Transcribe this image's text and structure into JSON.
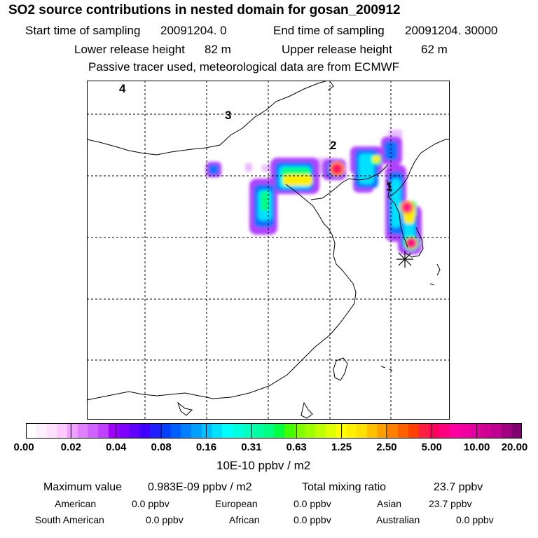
{
  "header": {
    "title": "SO2 source contributions in nested domain for gosan_200912",
    "start_label": "Start time of sampling",
    "start_value": "20091204.    0",
    "end_label": "End time of sampling",
    "end_value": "20091204. 30000",
    "lower_label": "Lower release height",
    "lower_value": "82 m",
    "upper_label": "Upper release height",
    "upper_value": "62 m",
    "tracer_note": "Passive tracer used, meteorological data are from ECMWF"
  },
  "map": {
    "region_labels": [
      "4",
      "3",
      "2",
      "1"
    ],
    "receptor_marker": "asterisk-icon",
    "hotspot_colors": [
      "#ff1480",
      "#e6003c",
      "#ffe000",
      "#c8ff00",
      "#00ff80",
      "#00a0ff",
      "#a000ff"
    ]
  },
  "colorbar": {
    "tick_labels": [
      "0.00",
      "0.02",
      "0.04",
      "0.08",
      "0.16",
      "0.31",
      "0.63",
      "1.25",
      "2.50",
      "5.00",
      "10.00",
      "20.00"
    ],
    "colors": [
      "#ffffff",
      "#fff0ff",
      "#ffe0ff",
      "#ffc8ff",
      "#f0a0ff",
      "#e080ff",
      "#d060ff",
      "#c040ff",
      "#a000ff",
      "#8000ff",
      "#6000ff",
      "#4000ff",
      "#2020ff",
      "#0040ff",
      "#0060ff",
      "#0080ff",
      "#00a0ff",
      "#00c0ff",
      "#00e0ff",
      "#00ffff",
      "#00ffe0",
      "#00ffc0",
      "#00ffa0",
      "#00ff80",
      "#00ff40",
      "#40ff00",
      "#80ff00",
      "#a0ff00",
      "#c0ff00",
      "#e0ff00",
      "#ffff00",
      "#fff000",
      "#ffe000",
      "#ffc000",
      "#ffa000",
      "#ff8000",
      "#ff6000",
      "#ff4000",
      "#ff2040",
      "#ff0060",
      "#ff0080",
      "#ff00a0",
      "#f000a0",
      "#e000a0",
      "#d00090",
      "#c00090",
      "#a00080",
      "#800070"
    ],
    "units": "10E-10 ppbv / m2"
  },
  "summary": {
    "max_label": "Maximum value",
    "max_value": "0.983E-09 ppbv / m2",
    "total_label": "Total mixing ratio",
    "total_value": "23.7 ppbv",
    "regions": [
      {
        "name": "American",
        "value": "0.0 ppbv"
      },
      {
        "name": "European",
        "value": "0.0 ppbv"
      },
      {
        "name": "Asian",
        "value": "23.7 ppbv"
      },
      {
        "name": "South American",
        "value": "0.0 ppbv"
      },
      {
        "name": "African",
        "value": "0.0 ppbv"
      },
      {
        "name": "Australian",
        "value": "0.0 ppbv"
      }
    ]
  }
}
